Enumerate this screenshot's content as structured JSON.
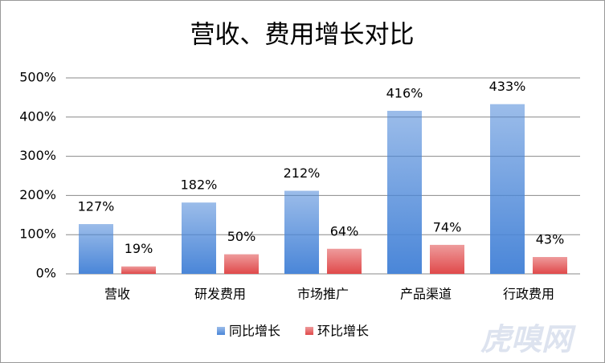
{
  "chart_data": {
    "type": "bar",
    "title": "营收、费用增长对比",
    "categories": [
      "营收",
      "研发费用",
      "市场推广",
      "产品渠道",
      "行政费用"
    ],
    "series": [
      {
        "name": "同比增长",
        "color": "#4a86d8",
        "values": [
          127,
          182,
          212,
          416,
          433
        ],
        "value_labels": [
          "127%",
          "182%",
          "212%",
          "416%",
          "433%"
        ]
      },
      {
        "name": "环比增长",
        "color": "#e0494a",
        "values": [
          19,
          50,
          64,
          74,
          43
        ],
        "value_labels": [
          "19%",
          "50%",
          "64%",
          "74%",
          "43%"
        ]
      }
    ],
    "ylim": [
      0,
      500
    ],
    "yticks": [
      {
        "value": 0,
        "label": "0%"
      },
      {
        "value": 100,
        "label": "100%"
      },
      {
        "value": 200,
        "label": "200%"
      },
      {
        "value": 300,
        "label": "300%"
      },
      {
        "value": 400,
        "label": "400%"
      },
      {
        "value": 500,
        "label": "500%"
      }
    ],
    "grid": true,
    "legend": "bottom",
    "watermark": "虎嗅网"
  }
}
